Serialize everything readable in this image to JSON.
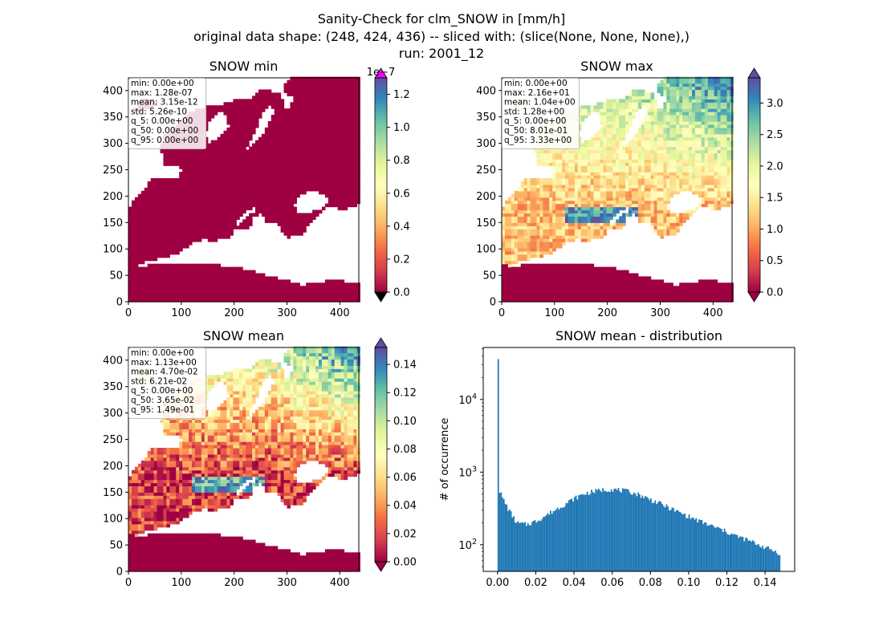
{
  "suptitle": {
    "line1": "Sanity-Check for clm_SNOW in [mm/h]",
    "line2": "original data shape: (248, 424, 436) -- sliced with: (slice(None, None, None),)",
    "line3": "run: 2001_12"
  },
  "colors": {
    "ocean_fill": "#9e0142",
    "cmap": [
      "#9e0142",
      "#d53e4f",
      "#f46d43",
      "#fdae61",
      "#fee08b",
      "#ffffbf",
      "#e6f598",
      "#abdda4",
      "#66c2a5",
      "#3288bd",
      "#5e4fa2"
    ],
    "over_color": "#ff00ff",
    "hist_bar": "#1f77b4"
  },
  "chart_data": [
    {
      "type": "heatmap",
      "title": "SNOW min",
      "xticks": [
        0,
        100,
        200,
        300,
        400
      ],
      "yticks": [
        0,
        50,
        100,
        150,
        200,
        250,
        300,
        350,
        400
      ],
      "xlim": [
        0,
        436
      ],
      "ylim": [
        0,
        424
      ],
      "colorbar": {
        "ticks": [
          "0.0",
          "0.2",
          "0.4",
          "0.6",
          "0.8",
          "1.0",
          "1.2"
        ],
        "tick_values": [
          0,
          0.2,
          0.4,
          0.6,
          0.8,
          1.0,
          1.2
        ],
        "vmax": 1.3,
        "offset_label": "1e−7",
        "extend": "both"
      },
      "stats": [
        "min: 0.00e+00",
        "max: 1.28e-07",
        "mean: 3.15e-12",
        "std: 5.26e-10",
        "q_5: 0.00e+00",
        "q_50: 0.00e+00",
        "q_95: 0.00e+00"
      ]
    },
    {
      "type": "heatmap",
      "title": "SNOW max",
      "xticks": [
        0,
        100,
        200,
        300,
        400
      ],
      "yticks": [
        0,
        50,
        100,
        150,
        200,
        250,
        300,
        350,
        400
      ],
      "xlim": [
        0,
        436
      ],
      "ylim": [
        0,
        424
      ],
      "colorbar": {
        "ticks": [
          "0.0",
          "0.5",
          "1.0",
          "1.5",
          "2.0",
          "2.5",
          "3.0"
        ],
        "tick_values": [
          0,
          0.5,
          1.0,
          1.5,
          2.0,
          2.5,
          3.0
        ],
        "vmax": 3.4,
        "offset_label": "",
        "extend": "both"
      },
      "stats": [
        "min: 0.00e+00",
        "max: 2.16e+01",
        "mean: 1.04e+00",
        "std: 1.28e+00",
        "q_5: 0.00e+00",
        "q_50: 8.01e-01",
        "q_95: 3.33e+00"
      ]
    },
    {
      "type": "heatmap",
      "title": "SNOW mean",
      "xticks": [
        0,
        100,
        200,
        300,
        400
      ],
      "yticks": [
        0,
        50,
        100,
        150,
        200,
        250,
        300,
        350,
        400
      ],
      "xlim": [
        0,
        436
      ],
      "ylim": [
        0,
        424
      ],
      "colorbar": {
        "ticks": [
          "0.00",
          "0.02",
          "0.04",
          "0.06",
          "0.08",
          "0.10",
          "0.12",
          "0.14"
        ],
        "tick_values": [
          0,
          0.02,
          0.04,
          0.06,
          0.08,
          0.1,
          0.12,
          0.14
        ],
        "vmax": 0.152,
        "offset_label": "",
        "extend": "both"
      },
      "stats": [
        "min: 0.00e+00",
        "max: 1.13e+00",
        "mean: 4.70e-02",
        "std: 6.21e-02",
        "q_5: 0.00e+00",
        "q_50: 3.65e-02",
        "q_95: 1.49e-01"
      ]
    },
    {
      "type": "bar",
      "title": "SNOW mean - distribution",
      "ylabel": "# of occurrence",
      "xlabel": "",
      "yscale": "log",
      "xlim": [
        -0.0075,
        0.1555
      ],
      "ylim": [
        43,
        52000
      ],
      "xticks": [
        "0.00",
        "0.02",
        "0.04",
        "0.06",
        "0.08",
        "0.10",
        "0.12",
        "0.14"
      ],
      "xtick_values": [
        0,
        0.02,
        0.04,
        0.06,
        0.08,
        0.1,
        0.12,
        0.14
      ],
      "yticks": [
        "10^2",
        "10^3",
        "10^4"
      ],
      "ytick_values": [
        100,
        1000,
        10000
      ],
      "bin_range": [
        0,
        0.148
      ],
      "key_points": [
        {
          "x": 0.0,
          "y": 36000
        },
        {
          "x": 0.0005,
          "y": 600
        },
        {
          "x": 0.003,
          "y": 420
        },
        {
          "x": 0.006,
          "y": 300
        },
        {
          "x": 0.01,
          "y": 200
        },
        {
          "x": 0.015,
          "y": 190
        },
        {
          "x": 0.02,
          "y": 210
        },
        {
          "x": 0.025,
          "y": 250
        },
        {
          "x": 0.03,
          "y": 300
        },
        {
          "x": 0.035,
          "y": 360
        },
        {
          "x": 0.04,
          "y": 430
        },
        {
          "x": 0.045,
          "y": 500
        },
        {
          "x": 0.05,
          "y": 540
        },
        {
          "x": 0.055,
          "y": 570
        },
        {
          "x": 0.06,
          "y": 580
        },
        {
          "x": 0.065,
          "y": 560
        },
        {
          "x": 0.07,
          "y": 530
        },
        {
          "x": 0.075,
          "y": 480
        },
        {
          "x": 0.08,
          "y": 420
        },
        {
          "x": 0.085,
          "y": 370
        },
        {
          "x": 0.09,
          "y": 320
        },
        {
          "x": 0.095,
          "y": 280
        },
        {
          "x": 0.1,
          "y": 245
        },
        {
          "x": 0.105,
          "y": 215
        },
        {
          "x": 0.11,
          "y": 190
        },
        {
          "x": 0.115,
          "y": 170
        },
        {
          "x": 0.12,
          "y": 150
        },
        {
          "x": 0.125,
          "y": 132
        },
        {
          "x": 0.13,
          "y": 118
        },
        {
          "x": 0.135,
          "y": 105
        },
        {
          "x": 0.14,
          "y": 92
        },
        {
          "x": 0.145,
          "y": 82
        },
        {
          "x": 0.148,
          "y": 75
        }
      ]
    }
  ]
}
